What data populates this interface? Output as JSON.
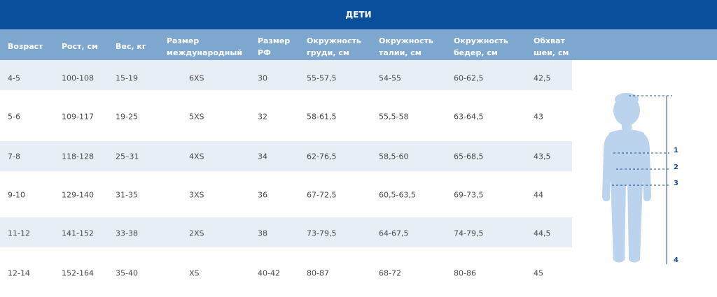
{
  "title": "ДЕТИ",
  "columns": [
    {
      "label_lines": [
        "Возраст"
      ]
    },
    {
      "label_lines": [
        "Рост, см"
      ]
    },
    {
      "label_lines": [
        "Вес, кг"
      ]
    },
    {
      "label_lines": [
        "Размер",
        "международный"
      ]
    },
    {
      "label_lines": [
        "Размер",
        "РФ"
      ]
    },
    {
      "label_lines": [
        "Окружность",
        "груди, см"
      ]
    },
    {
      "label_lines": [
        "Окружность",
        "талии, см"
      ]
    },
    {
      "label_lines": [
        "Окружность",
        "бедер, см"
      ]
    },
    {
      "label_lines": [
        "Обхват",
        "шеи, см"
      ]
    }
  ],
  "rows": [
    [
      "4-5",
      "100-108",
      "15-19",
      "6XS",
      "30",
      "55-57,5",
      "54-55",
      "60-62,5",
      "42,5"
    ],
    [
      "5-6",
      "109-117",
      "19-25",
      "5XS",
      "32",
      "58-61,5",
      "55,5-58",
      "63-64,5",
      "43"
    ],
    [
      "7-8",
      "118-128",
      "25–31",
      "4XS",
      "34",
      "62-76,5",
      "58,5-60",
      "65-68,5",
      "43,5"
    ],
    [
      "9-10",
      "129-140",
      "31-35",
      "3XS",
      "36",
      "67-72,5",
      "60,5-63,5",
      "69-73,5",
      "44"
    ],
    [
      "11-12",
      "141-152",
      "33-38",
      "2XS",
      "38",
      "73-79,5",
      "64-67,5",
      "74-79,5",
      "44,5"
    ],
    [
      "12-14",
      "152-164",
      "35-40",
      "XS",
      "40-42",
      "80-87",
      "68-72",
      "80-86",
      "45"
    ]
  ],
  "figure": {
    "markers": [
      "1",
      "2",
      "3",
      "4"
    ]
  },
  "colors": {
    "banner": "#0a4f9c",
    "header": "#7da7cf",
    "row_shade": "#e8eef5",
    "figure": "#bcd3ee",
    "marker": "#1a4f8f"
  }
}
